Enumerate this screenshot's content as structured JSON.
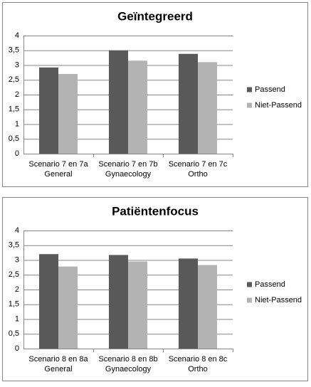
{
  "chart_data": [
    {
      "type": "bar",
      "title": "Geïntegreerd",
      "categories": [
        [
          "Scenario 7 en 7a",
          "General"
        ],
        [
          "Scenario 7 en 7b",
          "Gynaecology"
        ],
        [
          "Scenario 7 en 7c",
          "Ortho"
        ]
      ],
      "series": [
        {
          "name": "Passend",
          "color": "#595959",
          "values": [
            2.92,
            3.5,
            3.38
          ]
        },
        {
          "name": "Niet-Passend",
          "color": "#b3b3b3",
          "values": [
            2.7,
            3.15,
            3.1
          ]
        }
      ],
      "ylim": [
        0,
        4
      ],
      "yticks": [
        0,
        {
          "value": 0.5,
          "label": "0,5"
        },
        1,
        {
          "value": 1.5,
          "label": "1,5"
        },
        2,
        {
          "value": 2.5,
          "label": "2,5"
        },
        3,
        {
          "value": 3.5,
          "label": "3,5"
        },
        4
      ],
      "grid": true,
      "legend": "right"
    },
    {
      "type": "bar",
      "title": "Patiëntenfocus",
      "categories": [
        [
          "Scenario 8 en 8a",
          "General"
        ],
        [
          "Scenario 8 en 8b",
          "Gynaecology"
        ],
        [
          "Scenario 8 en 8c",
          "Ortho"
        ]
      ],
      "series": [
        {
          "name": "Passend",
          "color": "#595959",
          "values": [
            3.2,
            3.17,
            3.05
          ]
        },
        {
          "name": "Niet-Passend",
          "color": "#b3b3b3",
          "values": [
            2.78,
            2.95,
            2.83
          ]
        }
      ],
      "ylim": [
        0,
        4
      ],
      "yticks": [
        0,
        {
          "value": 0.5,
          "label": "0,5"
        },
        1,
        {
          "value": 1.5,
          "label": "1,5"
        },
        2,
        {
          "value": 2.5,
          "label": "2,5"
        },
        3,
        {
          "value": 3.5,
          "label": "3,5"
        },
        4
      ],
      "grid": true,
      "legend": "right"
    }
  ]
}
